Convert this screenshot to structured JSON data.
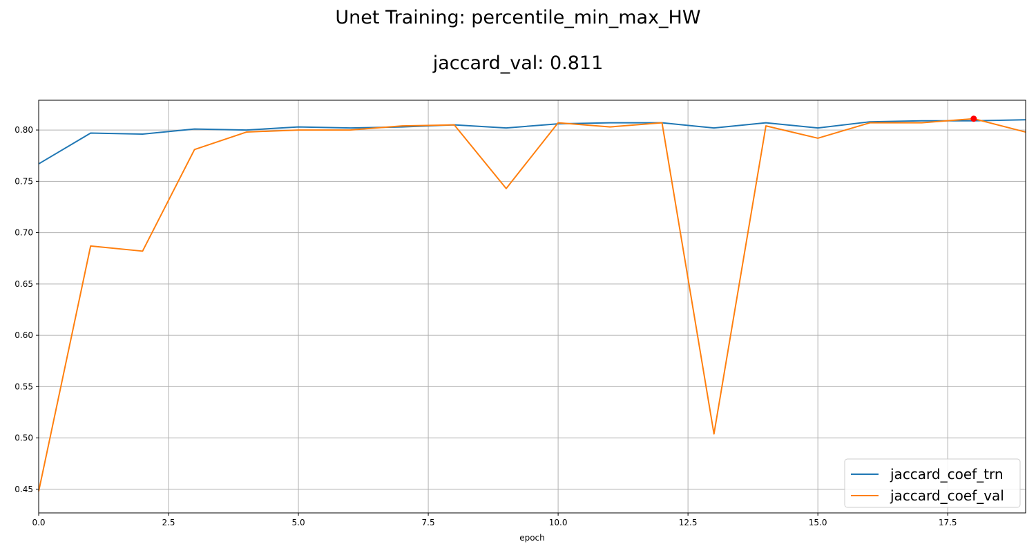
{
  "chart_data": {
    "type": "line",
    "title": "Unet Training: percentile_min_max_HW",
    "subtitle": "jaccard_val: 0.811",
    "xlabel": "epoch",
    "ylabel": "",
    "xlim": [
      0,
      19
    ],
    "ylim": [
      0.427,
      0.829
    ],
    "xticks": [
      0.0,
      2.5,
      5.0,
      7.5,
      10.0,
      12.5,
      15.0,
      17.5
    ],
    "xtick_labels": [
      "0.0",
      "2.5",
      "5.0",
      "7.5",
      "10.0",
      "12.5",
      "15.0",
      "17.5"
    ],
    "yticks": [
      0.45,
      0.5,
      0.55,
      0.6,
      0.65,
      0.7,
      0.75,
      0.8
    ],
    "ytick_labels": [
      "0.45",
      "0.50",
      "0.55",
      "0.60",
      "0.65",
      "0.70",
      "0.75",
      "0.80"
    ],
    "grid": true,
    "legend_position": "lower-right",
    "x": [
      0,
      1,
      2,
      3,
      4,
      5,
      6,
      7,
      8,
      9,
      10,
      11,
      12,
      13,
      14,
      15,
      16,
      17,
      18,
      19
    ],
    "series": [
      {
        "name": "jaccard_coef_trn",
        "color": "#1f77b4",
        "values": [
          0.767,
          0.797,
          0.796,
          0.801,
          0.8,
          0.803,
          0.802,
          0.803,
          0.805,
          0.802,
          0.806,
          0.807,
          0.807,
          0.802,
          0.807,
          0.802,
          0.808,
          0.809,
          0.809,
          0.81
        ]
      },
      {
        "name": "jaccard_coef_val",
        "color": "#ff7f0e",
        "values": [
          0.448,
          0.687,
          0.682,
          0.781,
          0.798,
          0.8,
          0.8,
          0.804,
          0.805,
          0.743,
          0.807,
          0.803,
          0.807,
          0.504,
          0.804,
          0.792,
          0.807,
          0.807,
          0.811,
          0.798
        ]
      }
    ],
    "highlight_point": {
      "x": 18,
      "y": 0.811,
      "color": "#ff0000"
    }
  }
}
